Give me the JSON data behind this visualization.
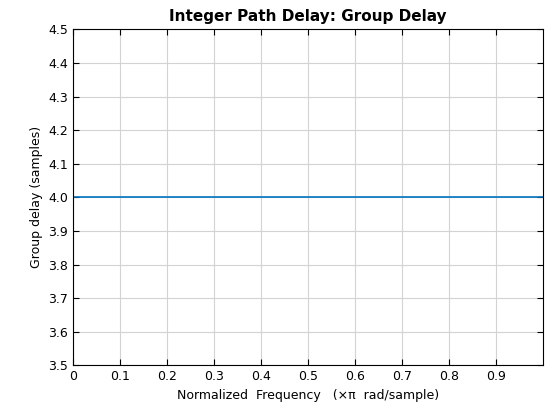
{
  "title": "Integer Path Delay: Group Delay",
  "xlabel": "Normalized  Frequency   (×π  rad/sample)",
  "ylabel": "Group delay (samples)",
  "xlim": [
    0,
    1.0
  ],
  "ylim": [
    3.5,
    4.5
  ],
  "xticks": [
    0,
    0.1,
    0.2,
    0.3,
    0.4,
    0.5,
    0.6,
    0.7,
    0.8,
    0.9
  ],
  "xtick_labels": [
    "0",
    "0.1",
    "0.2",
    "0.3",
    "0.4",
    "0.5",
    "0.6",
    "0.7",
    "0.8",
    "0.9"
  ],
  "yticks": [
    3.5,
    3.6,
    3.7,
    3.8,
    3.9,
    4.0,
    4.1,
    4.2,
    4.3,
    4.4,
    4.5
  ],
  "line_y": 4.0,
  "line_color": "#0072BD",
  "line_width": 1.2,
  "grid_color": "#D3D3D3",
  "background_color": "#FFFFFF",
  "title_fontsize": 11,
  "label_fontsize": 9,
  "tick_fontsize": 9
}
